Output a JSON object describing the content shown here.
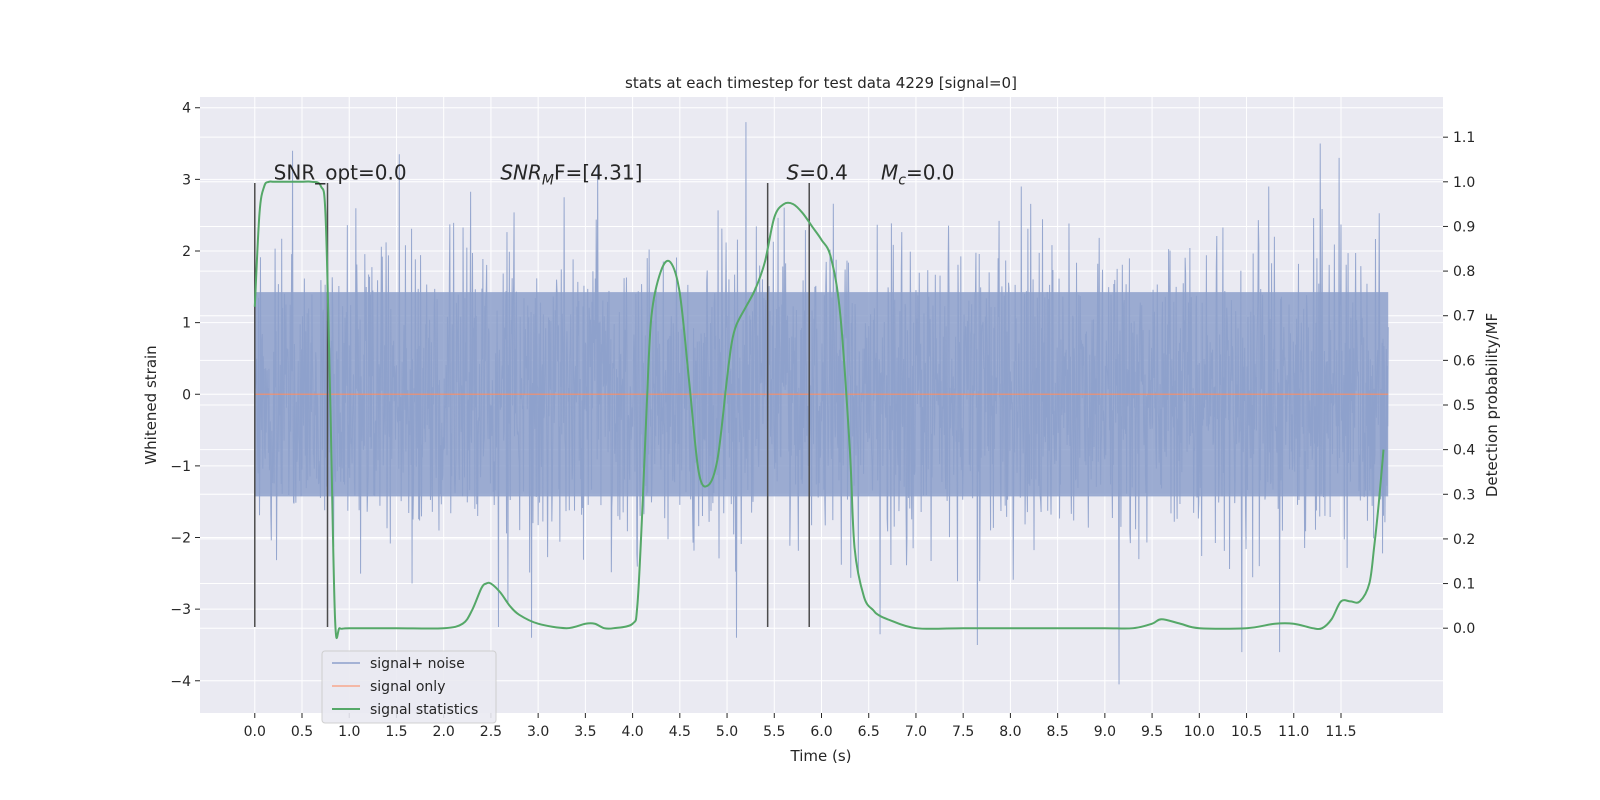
{
  "chart_data": {
    "type": "line",
    "title": "stats at each timestep for test data 4229 [signal=0]",
    "xlabel": "Time (s)",
    "ylabel": "Whitened strain",
    "y2label": "Detection probability/MF",
    "xlim": [
      -0.58,
      12.58
    ],
    "ylim": [
      -4.45,
      4.15
    ],
    "y2lim": [
      -0.19,
      1.19
    ],
    "x_ticks": [
      0.0,
      0.5,
      1.0,
      1.5,
      2.0,
      2.5,
      3.0,
      3.5,
      4.0,
      4.5,
      5.0,
      5.5,
      6.0,
      6.5,
      7.0,
      7.5,
      8.0,
      8.5,
      9.0,
      9.5,
      10.0,
      10.5,
      11.0,
      11.5
    ],
    "x_tick_labels": [
      "0.0",
      "0.5",
      "1.0",
      "1.5",
      "2.0",
      "2.5",
      "3.0",
      "3.5",
      "4.0",
      "4.5",
      "5.0",
      "5.5",
      "6.0",
      "6.5",
      "7.0",
      "7.5",
      "8.0",
      "8.5",
      "9.0",
      "9.5",
      "10.0",
      "10.5",
      "11.0",
      "11.5"
    ],
    "y_ticks": [
      -4,
      -3,
      -2,
      -1,
      0,
      1,
      2,
      3,
      4
    ],
    "y_tick_labels": [
      "−4",
      "−3",
      "−2",
      "−1",
      "0",
      "1",
      "2",
      "3",
      "4"
    ],
    "y2_ticks": [
      0.0,
      0.1,
      0.2,
      0.3,
      0.4,
      0.5,
      0.6,
      0.7,
      0.8,
      0.9,
      1.0,
      1.1
    ],
    "y2_tick_labels": [
      "0.0",
      "0.1",
      "0.2",
      "0.3",
      "0.4",
      "0.5",
      "0.6",
      "0.7",
      "0.8",
      "0.9",
      "1.0",
      "1.1"
    ],
    "grid": true,
    "legend_placement": "lower-left",
    "series": [
      {
        "name": "signal+ noise",
        "color": "#8da0cb",
        "axis": "left",
        "x_range": [
          0.0,
          12.0
        ],
        "noise_envelope_p99": [
          -2.3,
          2.3
        ],
        "peak_values": [
          {
            "x": 0.4,
            "y": 3.4
          },
          {
            "x": 1.53,
            "y": 3.35
          },
          {
            "x": 2.58,
            "y": -3.25
          },
          {
            "x": 2.93,
            "y": -3.4
          },
          {
            "x": 3.63,
            "y": 3.2
          },
          {
            "x": 5.1,
            "y": -3.4
          },
          {
            "x": 5.2,
            "y": 3.8
          },
          {
            "x": 6.62,
            "y": -3.35
          },
          {
            "x": 7.65,
            "y": -3.5
          },
          {
            "x": 9.15,
            "y": -4.05
          },
          {
            "x": 10.45,
            "y": -3.6
          },
          {
            "x": 10.85,
            "y": -3.6
          },
          {
            "x": 11.28,
            "y": 3.5
          },
          {
            "x": 11.48,
            "y": 3.3
          }
        ]
      },
      {
        "name": "signal only",
        "color": "#fc8d62",
        "axis": "left",
        "x": [
          0.0,
          12.0
        ],
        "y": [
          0.0,
          0.0
        ]
      },
      {
        "name": "signal statistics",
        "color": "#55a868",
        "axis": "right",
        "x": [
          0.0,
          0.05,
          0.1,
          0.15,
          0.2,
          0.3,
          0.4,
          0.5,
          0.6,
          0.7,
          0.75,
          0.8,
          0.85,
          0.9,
          1.0,
          1.5,
          2.0,
          2.2,
          2.3,
          2.4,
          2.45,
          2.5,
          2.6,
          2.7,
          2.8,
          3.0,
          3.3,
          3.5,
          3.6,
          3.7,
          3.8,
          4.0,
          4.05,
          4.1,
          4.15,
          4.2,
          4.3,
          4.4,
          4.5,
          4.6,
          4.7,
          4.8,
          4.9,
          5.0,
          5.05,
          5.1,
          5.2,
          5.3,
          5.4,
          5.5,
          5.6,
          5.7,
          5.8,
          5.9,
          6.0,
          6.1,
          6.2,
          6.3,
          6.35,
          6.45,
          6.55,
          6.6,
          6.7,
          7.0,
          7.5,
          8.0,
          8.5,
          9.0,
          9.3,
          9.5,
          9.6,
          9.8,
          10.0,
          10.5,
          10.8,
          11.0,
          11.2,
          11.3,
          11.4,
          11.5,
          11.6,
          11.7,
          11.8,
          11.85,
          11.9,
          11.95
        ],
        "y": [
          0.72,
          0.93,
          0.99,
          1.0,
          1.0,
          1.0,
          1.0,
          1.0,
          1.0,
          0.99,
          0.92,
          0.5,
          0.02,
          0.0,
          0.0,
          0.0,
          0.0,
          0.01,
          0.04,
          0.09,
          0.1,
          0.1,
          0.08,
          0.05,
          0.03,
          0.01,
          0.0,
          0.01,
          0.01,
          0.0,
          0.0,
          0.01,
          0.05,
          0.25,
          0.5,
          0.7,
          0.8,
          0.82,
          0.75,
          0.55,
          0.35,
          0.32,
          0.38,
          0.56,
          0.64,
          0.68,
          0.72,
          0.76,
          0.82,
          0.92,
          0.95,
          0.95,
          0.93,
          0.9,
          0.87,
          0.83,
          0.7,
          0.4,
          0.18,
          0.07,
          0.04,
          0.03,
          0.02,
          0.0,
          0.0,
          0.0,
          0.0,
          0.0,
          0.0,
          0.01,
          0.02,
          0.01,
          0.0,
          0.0,
          0.01,
          0.01,
          0.0,
          0.0,
          0.02,
          0.06,
          0.06,
          0.06,
          0.1,
          0.18,
          0.28,
          0.4
        ]
      }
    ],
    "vlines": [
      0.0,
      0.77,
      5.43,
      5.87
    ],
    "vline_ylim": [
      -3.25,
      2.95
    ],
    "annotations": [
      {
        "text": "SNR_opt=0.0",
        "x": 0.2,
        "y": 3.0
      },
      {
        "text_parts": [
          "SNR",
          "M",
          "F=[4.31]"
        ],
        "x": 2.6,
        "y": 3.0
      },
      {
        "text_parts": [
          "S",
          "=0.4"
        ],
        "x": 5.63,
        "y": 3.0
      },
      {
        "text_parts": [
          "M",
          "c",
          "=0.0"
        ],
        "x": 6.63,
        "y": 3.0
      }
    ]
  }
}
